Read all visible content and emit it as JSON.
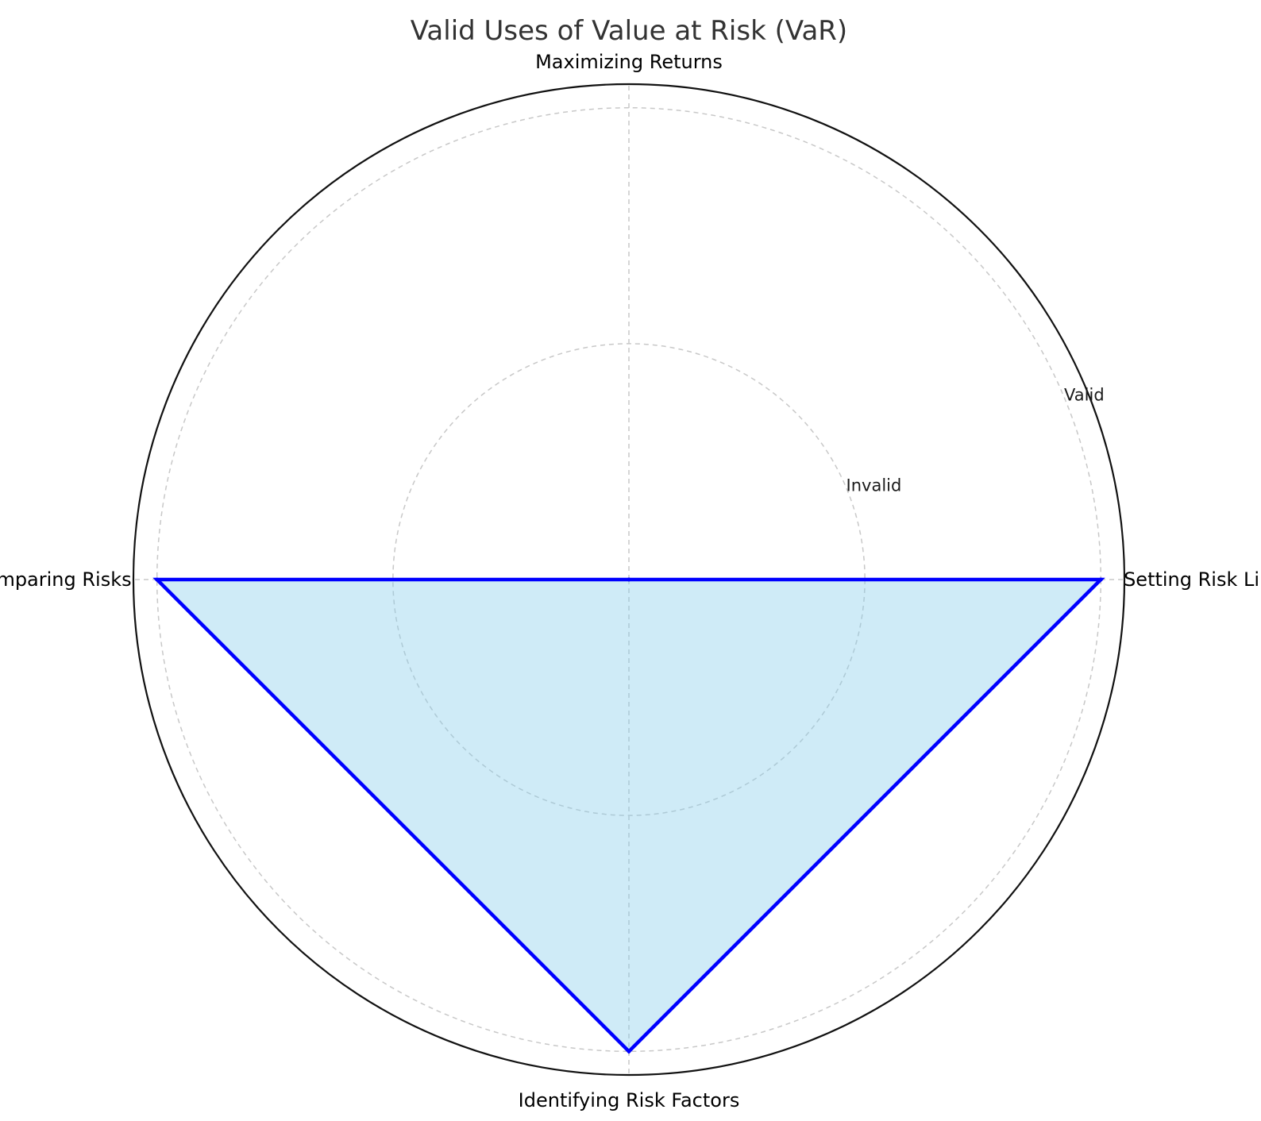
{
  "chart_data": {
    "type": "radar",
    "title": "Valid Uses of Value at Risk (VaR)",
    "categories": [
      "Setting Risk Limits",
      "Maximizing Returns",
      "Comparing Risks",
      "Identifying Risk Factors"
    ],
    "values": [
      1,
      0,
      1,
      1
    ],
    "value_labels": {
      "0": "Invalid",
      "1": "Valid"
    },
    "r_ticks": [
      0.5,
      1.0
    ],
    "r_tick_labels": [
      "Invalid",
      "Valid"
    ],
    "rlim": [
      0,
      1.05
    ],
    "grid": true,
    "fill_color": "#87ceeb",
    "fill_opacity": 0.4,
    "line_color": "#0000ff"
  }
}
